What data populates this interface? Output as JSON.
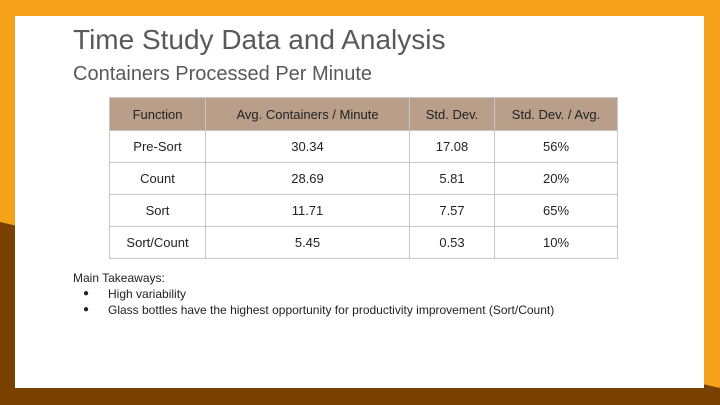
{
  "slide": {
    "title": "Time Study Data and Analysis",
    "subtitle": "Containers Processed Per Minute",
    "colors": {
      "background": "#f7a21b",
      "accent_brown": "#7a4000",
      "header_fill": "#b99f8a",
      "text": "#595959"
    }
  },
  "table": {
    "headers": [
      "Function",
      "Avg. Containers / Minute",
      "Std. Dev.",
      "Std. Dev. / Avg."
    ],
    "rows": [
      [
        "Pre-Sort",
        "30.34",
        "17.08",
        "56%"
      ],
      [
        "Count",
        "28.69",
        "5.81",
        "20%"
      ],
      [
        "Sort",
        "11.71",
        "7.57",
        "65%"
      ],
      [
        "Sort/Count",
        "5.45",
        "0.53",
        "10%"
      ]
    ]
  },
  "takeaways": {
    "heading": "Main Takeaways:",
    "bullet_glyph": "●",
    "items": [
      "High variability",
      "Glass bottles have the highest opportunity for productivity improvement (Sort/Count)"
    ]
  }
}
